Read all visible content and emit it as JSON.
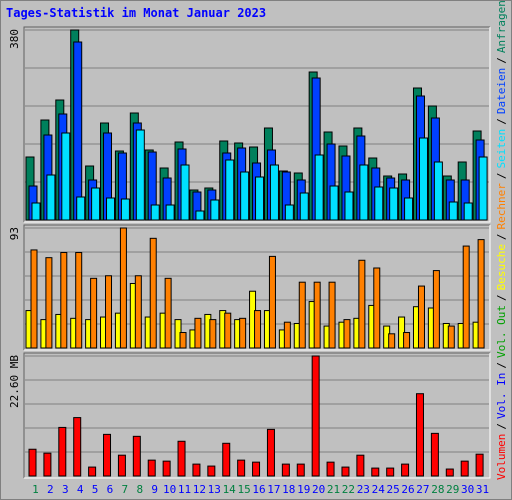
{
  "chart_data": [
    {
      "type": "bar",
      "title": "Tages-Statistik im Monat Januar 2023",
      "ylim": [
        0,
        380
      ],
      "yticks": [
        380
      ],
      "grid": true,
      "series": [
        {
          "name": "Anfragen",
          "color": "#00805c",
          "values": [
            126,
            200,
            240,
            380,
            108,
            194,
            138,
            214,
            140,
            104,
            156,
            60,
            64,
            158,
            154,
            146,
            184,
            98,
            94,
            296,
            176,
            148,
            184,
            124,
            88,
            92,
            264,
            228,
            88,
            116,
            178
          ]
        },
        {
          "name": "Dateien",
          "color": "#0040ff",
          "values": [
            68,
            170,
            212,
            356,
            80,
            174,
            134,
            194,
            136,
            84,
            142,
            56,
            60,
            134,
            144,
            114,
            140,
            96,
            80,
            284,
            152,
            128,
            168,
            104,
            84,
            80,
            248,
            204,
            80,
            80,
            160
          ]
        },
        {
          "name": "Seiten",
          "color": "#00e0ff",
          "values": [
            34,
            90,
            174,
            46,
            64,
            44,
            42,
            180,
            30,
            30,
            110,
            18,
            40,
            120,
            96,
            86,
            110,
            30,
            54,
            130,
            68,
            56,
            110,
            66,
            64,
            44,
            164,
            116,
            36,
            34,
            126
          ]
        }
      ]
    },
    {
      "type": "bar",
      "ylim": [
        0,
        93
      ],
      "yticks": [
        93
      ],
      "grid": true,
      "series": [
        {
          "name": "Besuche",
          "color": "#ffff00",
          "values": [
            29,
            22,
            26,
            23,
            22,
            24,
            27,
            50,
            24,
            27,
            22,
            14,
            26,
            29,
            22,
            44,
            29,
            14,
            19,
            36,
            17,
            20,
            23,
            33,
            17,
            24,
            32,
            31,
            19,
            19,
            20
          ]
        },
        {
          "name": "Rechner",
          "color": "#ff8000",
          "values": [
            76,
            70,
            74,
            74,
            54,
            56,
            93,
            56,
            85,
            54,
            12,
            23,
            22,
            27,
            23,
            29,
            71,
            20,
            51,
            51,
            51,
            22,
            68,
            62,
            11,
            12,
            48,
            60,
            17,
            79,
            84
          ]
        }
      ]
    },
    {
      "type": "bar",
      "ylim": [
        0,
        22.6
      ],
      "yticks": [
        {
          "value": 22.6,
          "label": "22.60 MB"
        }
      ],
      "grid": true,
      "categories": [
        "1",
        "2",
        "3",
        "4",
        "5",
        "6",
        "7",
        "8",
        "9",
        "10",
        "11",
        "12",
        "13",
        "14",
        "15",
        "16",
        "17",
        "18",
        "19",
        "20",
        "21",
        "22",
        "23",
        "24",
        "25",
        "26",
        "27",
        "28",
        "29",
        "30",
        "31"
      ],
      "label_colors": [
        "#008040",
        "#0000ff",
        "#0000ff",
        "#0000ff",
        "#0000ff",
        "#0000ff",
        "#008040",
        "#008040",
        "#0000ff",
        "#0000ff",
        "#0000ff",
        "#0000ff",
        "#0000ff",
        "#008040",
        "#008040",
        "#0000ff",
        "#0000ff",
        "#0000ff",
        "#0000ff",
        "#0000ff",
        "#008040",
        "#008040",
        "#0000ff",
        "#0000ff",
        "#0000ff",
        "#0000ff",
        "#0000ff",
        "#008040",
        "#008040",
        "#0000ff",
        "#0000ff"
      ],
      "series": [
        {
          "name": "Volumen",
          "color": "#ff0000",
          "values": [
            5.04,
            4.3,
            9.15,
            11.0,
            1.68,
            7.84,
            3.92,
            7.47,
            2.99,
            2.8,
            6.54,
            2.24,
            1.87,
            6.16,
            2.99,
            2.61,
            8.78,
            2.24,
            2.24,
            22.6,
            2.61,
            1.68,
            3.92,
            1.49,
            1.49,
            2.24,
            15.5,
            8.03,
            1.31,
            2.8,
            4.11
          ]
        }
      ],
      "legend_extra": [
        {
          "name": "Vol. In",
          "color": "#0000ff"
        },
        {
          "name": "Vol. Out",
          "color": "#00a000"
        }
      ],
      "legend_separator": "/"
    }
  ]
}
